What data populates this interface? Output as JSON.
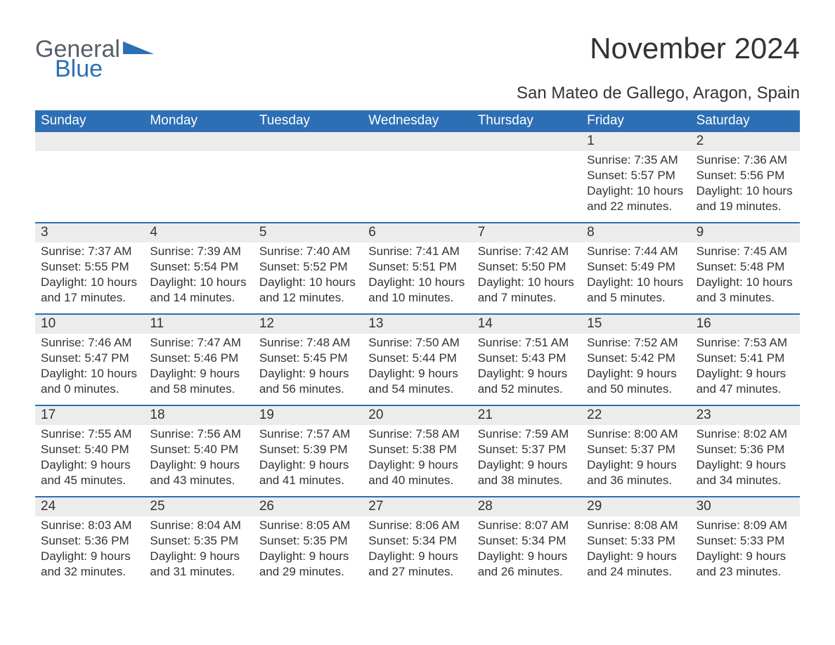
{
  "logo": {
    "text1": "General",
    "text2": "Blue",
    "accent_color": "#2c6fb5"
  },
  "title": "November 2024",
  "subtitle": "San Mateo de Gallego, Aragon, Spain",
  "colors": {
    "header_bg": "#2c6fb5",
    "header_text": "#ffffff",
    "row_border": "#2c6fb5",
    "daynum_bg": "#ececec",
    "body_text": "#333333",
    "page_bg": "#ffffff"
  },
  "fontsizes": {
    "title": 42,
    "subtitle": 24,
    "weekday": 19,
    "daynum": 19,
    "body": 17
  },
  "weekdays": [
    "Sunday",
    "Monday",
    "Tuesday",
    "Wednesday",
    "Thursday",
    "Friday",
    "Saturday"
  ],
  "labels": {
    "sunrise": "Sunrise: ",
    "sunset": "Sunset: ",
    "daylight": "Daylight: "
  },
  "weeks": [
    [
      null,
      null,
      null,
      null,
      null,
      {
        "n": "1",
        "sunrise": "7:35 AM",
        "sunset": "5:57 PM",
        "daylight": "10 hours and 22 minutes."
      },
      {
        "n": "2",
        "sunrise": "7:36 AM",
        "sunset": "5:56 PM",
        "daylight": "10 hours and 19 minutes."
      }
    ],
    [
      {
        "n": "3",
        "sunrise": "7:37 AM",
        "sunset": "5:55 PM",
        "daylight": "10 hours and 17 minutes."
      },
      {
        "n": "4",
        "sunrise": "7:39 AM",
        "sunset": "5:54 PM",
        "daylight": "10 hours and 14 minutes."
      },
      {
        "n": "5",
        "sunrise": "7:40 AM",
        "sunset": "5:52 PM",
        "daylight": "10 hours and 12 minutes."
      },
      {
        "n": "6",
        "sunrise": "7:41 AM",
        "sunset": "5:51 PM",
        "daylight": "10 hours and 10 minutes."
      },
      {
        "n": "7",
        "sunrise": "7:42 AM",
        "sunset": "5:50 PM",
        "daylight": "10 hours and 7 minutes."
      },
      {
        "n": "8",
        "sunrise": "7:44 AM",
        "sunset": "5:49 PM",
        "daylight": "10 hours and 5 minutes."
      },
      {
        "n": "9",
        "sunrise": "7:45 AM",
        "sunset": "5:48 PM",
        "daylight": "10 hours and 3 minutes."
      }
    ],
    [
      {
        "n": "10",
        "sunrise": "7:46 AM",
        "sunset": "5:47 PM",
        "daylight": "10 hours and 0 minutes."
      },
      {
        "n": "11",
        "sunrise": "7:47 AM",
        "sunset": "5:46 PM",
        "daylight": "9 hours and 58 minutes."
      },
      {
        "n": "12",
        "sunrise": "7:48 AM",
        "sunset": "5:45 PM",
        "daylight": "9 hours and 56 minutes."
      },
      {
        "n": "13",
        "sunrise": "7:50 AM",
        "sunset": "5:44 PM",
        "daylight": "9 hours and 54 minutes."
      },
      {
        "n": "14",
        "sunrise": "7:51 AM",
        "sunset": "5:43 PM",
        "daylight": "9 hours and 52 minutes."
      },
      {
        "n": "15",
        "sunrise": "7:52 AM",
        "sunset": "5:42 PM",
        "daylight": "9 hours and 50 minutes."
      },
      {
        "n": "16",
        "sunrise": "7:53 AM",
        "sunset": "5:41 PM",
        "daylight": "9 hours and 47 minutes."
      }
    ],
    [
      {
        "n": "17",
        "sunrise": "7:55 AM",
        "sunset": "5:40 PM",
        "daylight": "9 hours and 45 minutes."
      },
      {
        "n": "18",
        "sunrise": "7:56 AM",
        "sunset": "5:40 PM",
        "daylight": "9 hours and 43 minutes."
      },
      {
        "n": "19",
        "sunrise": "7:57 AM",
        "sunset": "5:39 PM",
        "daylight": "9 hours and 41 minutes."
      },
      {
        "n": "20",
        "sunrise": "7:58 AM",
        "sunset": "5:38 PM",
        "daylight": "9 hours and 40 minutes."
      },
      {
        "n": "21",
        "sunrise": "7:59 AM",
        "sunset": "5:37 PM",
        "daylight": "9 hours and 38 minutes."
      },
      {
        "n": "22",
        "sunrise": "8:00 AM",
        "sunset": "5:37 PM",
        "daylight": "9 hours and 36 minutes."
      },
      {
        "n": "23",
        "sunrise": "8:02 AM",
        "sunset": "5:36 PM",
        "daylight": "9 hours and 34 minutes."
      }
    ],
    [
      {
        "n": "24",
        "sunrise": "8:03 AM",
        "sunset": "5:36 PM",
        "daylight": "9 hours and 32 minutes."
      },
      {
        "n": "25",
        "sunrise": "8:04 AM",
        "sunset": "5:35 PM",
        "daylight": "9 hours and 31 minutes."
      },
      {
        "n": "26",
        "sunrise": "8:05 AM",
        "sunset": "5:35 PM",
        "daylight": "9 hours and 29 minutes."
      },
      {
        "n": "27",
        "sunrise": "8:06 AM",
        "sunset": "5:34 PM",
        "daylight": "9 hours and 27 minutes."
      },
      {
        "n": "28",
        "sunrise": "8:07 AM",
        "sunset": "5:34 PM",
        "daylight": "9 hours and 26 minutes."
      },
      {
        "n": "29",
        "sunrise": "8:08 AM",
        "sunset": "5:33 PM",
        "daylight": "9 hours and 24 minutes."
      },
      {
        "n": "30",
        "sunrise": "8:09 AM",
        "sunset": "5:33 PM",
        "daylight": "9 hours and 23 minutes."
      }
    ]
  ]
}
